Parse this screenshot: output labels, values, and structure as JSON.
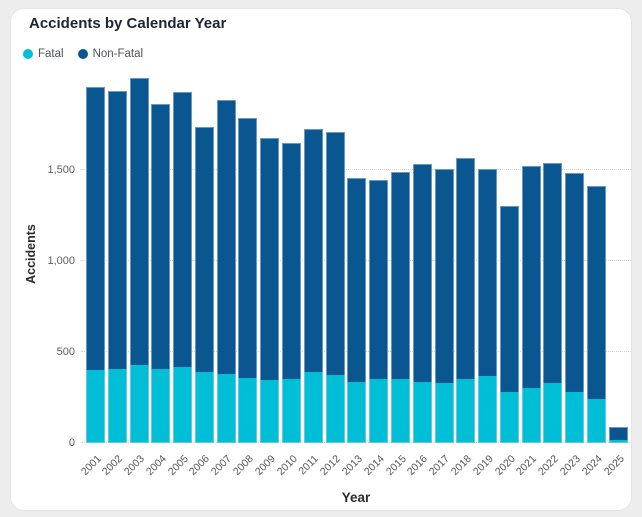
{
  "card": {
    "title": "Accidents by Calendar Year"
  },
  "legend": {
    "items": [
      {
        "label": "Fatal",
        "color": "#00bed6"
      },
      {
        "label": "Non-Fatal",
        "color": "#0a5691"
      }
    ]
  },
  "chart_data": {
    "type": "bar",
    "stacked": true,
    "title": "Accidents by Calendar Year",
    "xlabel": "Year",
    "ylabel": "Accidents",
    "categories": [
      "2001",
      "2002",
      "2003",
      "2004",
      "2005",
      "2006",
      "2007",
      "2008",
      "2009",
      "2010",
      "2011",
      "2012",
      "2013",
      "2014",
      "2015",
      "2016",
      "2017",
      "2018",
      "2019",
      "2020",
      "2021",
      "2022",
      "2023",
      "2024",
      "2025"
    ],
    "series": [
      {
        "name": "Fatal",
        "color": "#00bed6",
        "values": [
          400,
          405,
          430,
          410,
          420,
          390,
          380,
          360,
          345,
          350,
          390,
          375,
          335,
          355,
          355,
          335,
          330,
          350,
          370,
          280,
          305,
          330,
          280,
          240,
          15
        ]
      },
      {
        "name": "Non-Fatal",
        "color": "#0a5691",
        "values": [
          1560,
          1530,
          1580,
          1455,
          1510,
          1350,
          1505,
          1430,
          1335,
          1300,
          1340,
          1335,
          1125,
          1090,
          1135,
          1200,
          1180,
          1220,
          1140,
          1025,
          1220,
          1210,
          1205,
          1175,
          75
        ]
      }
    ],
    "y_ticks": [
      {
        "label": "0",
        "value": 0
      },
      {
        "label": "500",
        "value": 500
      },
      {
        "label": "1,000",
        "value": 1000
      },
      {
        "label": "1,500",
        "value": 1500
      }
    ],
    "ylim": [
      0,
      2080
    ],
    "grid": "dotted-horizontal",
    "legend_position": "top-left"
  }
}
